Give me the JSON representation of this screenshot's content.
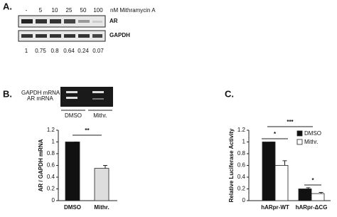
{
  "panel_a": {
    "label": "A.",
    "lanes": [
      "-",
      "5",
      "10",
      "25",
      "50",
      "100"
    ],
    "treatment": "nM Mithramycin A",
    "blots": [
      "AR",
      "GAPDH"
    ],
    "quantification": [
      "1",
      "0.75",
      "0.8",
      "0.64",
      "0.24",
      "0.07"
    ]
  },
  "panel_b_gel": {
    "label": "B.",
    "bands": [
      "GAPDH mRNA",
      "AR mRNA"
    ],
    "lanes": [
      "DMSO",
      "Mithr."
    ]
  },
  "panel_c_label": "C.",
  "chart_data": [
    {
      "type": "bar",
      "y_label": "AR / GAPDH mRNA",
      "categories": [
        "DMSO",
        "Mithr."
      ],
      "values": [
        1,
        0.55
      ],
      "errors": [
        0,
        0.05
      ],
      "colors": [
        "#111111",
        "#dddddd"
      ],
      "ylim": [
        0,
        1.2
      ],
      "yticks": [
        0,
        0.2,
        0.4,
        0.6,
        0.8,
        1,
        1.2
      ],
      "annotations": [
        "**"
      ]
    },
    {
      "type": "grouped_bar",
      "y_label": "Relative Luciferase Activity",
      "categories": [
        "hARpr-WT",
        "hARpr-ΔCG"
      ],
      "series": [
        {
          "name": "DMSO",
          "color": "#111111",
          "values": [
            1,
            0.2
          ],
          "errors": [
            0,
            0.02
          ]
        },
        {
          "name": "Mithr.",
          "color": "#ffffff",
          "values": [
            0.6,
            0.12
          ],
          "errors": [
            0.08,
            0.02
          ]
        }
      ],
      "ylim": [
        0,
        1.2
      ],
      "yticks": [
        0,
        0.2,
        0.4,
        0.6,
        0.8,
        1,
        1.2
      ],
      "annotations": [
        "*",
        "***",
        "*"
      ]
    }
  ]
}
